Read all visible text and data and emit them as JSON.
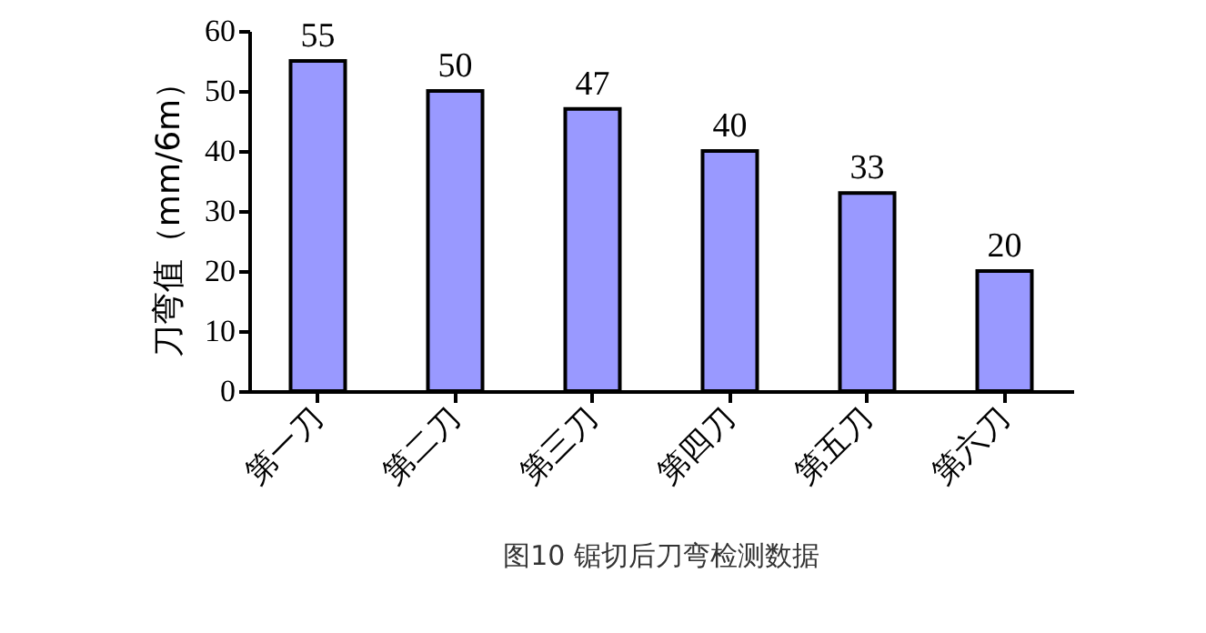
{
  "chart_data": {
    "type": "bar",
    "ylabel": "刀弯值（mm/6m）",
    "annotations": [
      "图10 锯切后刀弯检测数据"
    ],
    "categories": [
      "第一刀",
      "第二刀",
      "第三刀",
      "第四刀",
      "第五刀",
      "第六刀"
    ],
    "values": [
      55,
      50,
      47,
      40,
      33,
      20
    ],
    "color": "#9999ff",
    "ylim": [
      0,
      60
    ],
    "yticks": [
      0,
      10,
      20,
      30,
      40,
      50,
      60
    ],
    "data_labels": true,
    "grid": false
  }
}
